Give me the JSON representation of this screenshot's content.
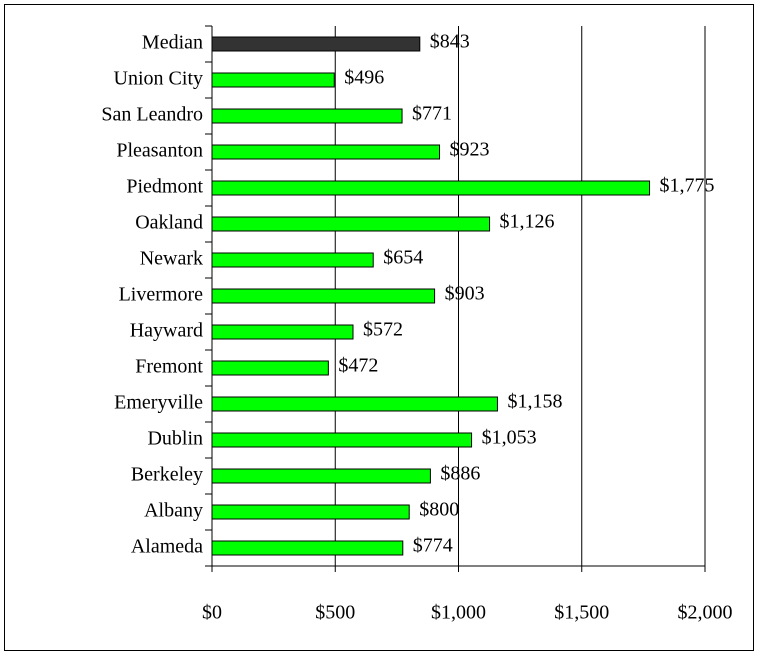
{
  "chart_data": {
    "type": "barh",
    "categories": [
      "Median",
      "Union City",
      "San Leandro",
      "Pleasanton",
      "Piedmont",
      "Oakland",
      "Newark",
      "Livermore",
      "Hayward",
      "Fremont",
      "Emeryville",
      "Dublin",
      "Berkeley",
      "Albany",
      "Alameda"
    ],
    "values": [
      843,
      496,
      771,
      923,
      1775,
      1126,
      654,
      903,
      572,
      472,
      1158,
      1053,
      886,
      800,
      774
    ],
    "value_labels": [
      "$843",
      "$496",
      "$771",
      "$923",
      "$1,775",
      "$1,126",
      "$654",
      "$903",
      "$572",
      "$472",
      "$1,158",
      "$1,053",
      "$886",
      "$800",
      "$774"
    ],
    "colors": [
      "#333333",
      "#00ff00",
      "#00ff00",
      "#00ff00",
      "#00ff00",
      "#00ff00",
      "#00ff00",
      "#00ff00",
      "#00ff00",
      "#00ff00",
      "#00ff00",
      "#00ff00",
      "#00ff00",
      "#00ff00",
      "#00ff00"
    ],
    "xlim": [
      0,
      2000
    ],
    "xticks": [
      {
        "value": 0,
        "label": "$0"
      },
      {
        "value": 500,
        "label": "$500"
      },
      {
        "value": 1000,
        "label": "$1,000"
      },
      {
        "value": 1500,
        "label": "$1,500"
      },
      {
        "value": 2000,
        "label": "$2,000"
      }
    ],
    "grid": true
  }
}
